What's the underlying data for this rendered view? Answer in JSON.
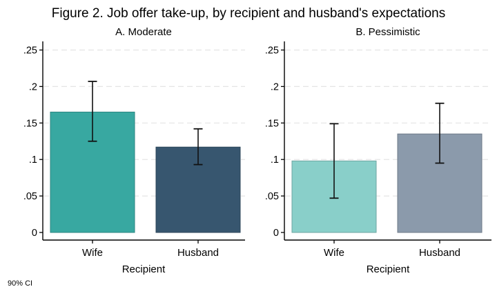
{
  "chart_data": {
    "type": "bar",
    "title": "Figure 2. Job offer take-up, by recipient and husband's expectations",
    "note": "90% CI",
    "categories": [
      "Wife",
      "Husband"
    ],
    "xlabel": "Recipient",
    "ylabel": "",
    "ylim": [
      0,
      0.26
    ],
    "yticks": [
      0,
      0.05,
      0.1,
      0.15,
      0.2,
      0.25
    ],
    "ytick_labels": [
      "0",
      ".05",
      ".1",
      ".15",
      ".2",
      ".25"
    ],
    "grid": "horizontal-dashed",
    "legend": "none",
    "error_bars": "90% confidence intervals",
    "panels": [
      {
        "title": "A. Moderate",
        "key": "moderate",
        "series": [
          {
            "category": "Wife",
            "value": 0.165,
            "ci_low": 0.125,
            "ci_high": 0.207,
            "color": "#38a8a1"
          },
          {
            "category": "Husband",
            "value": 0.117,
            "ci_low": 0.093,
            "ci_high": 0.142,
            "color": "#37566f"
          }
        ]
      },
      {
        "title": "B. Pessimistic",
        "key": "pessimistic",
        "series": [
          {
            "category": "Wife",
            "value": 0.098,
            "ci_low": 0.047,
            "ci_high": 0.149,
            "color": "#89cfc9"
          },
          {
            "category": "Husband",
            "value": 0.135,
            "ci_low": 0.095,
            "ci_high": 0.177,
            "color": "#8b9aab"
          }
        ]
      }
    ]
  }
}
